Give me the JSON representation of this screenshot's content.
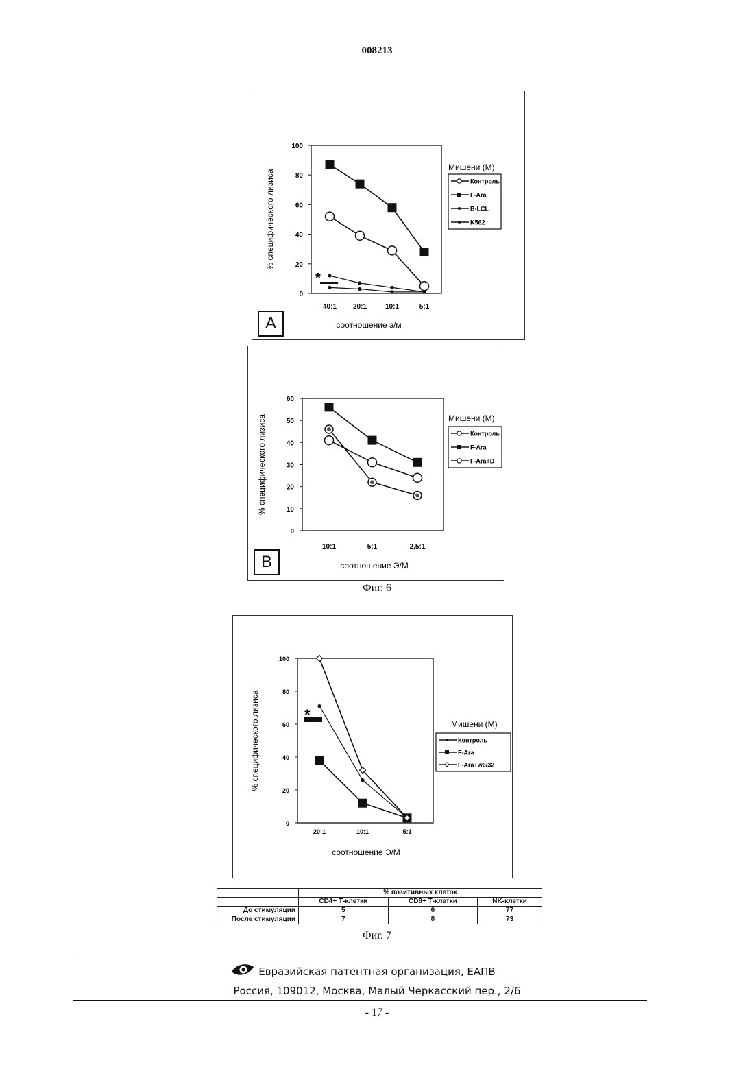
{
  "header": {
    "doc_number": "008213"
  },
  "figure6": {
    "caption": "Фиг. 6",
    "panel_a": {
      "letter": "A",
      "ylabel": "% специфического лизиса",
      "xlabel": "соотношение э/м",
      "legend_title": "Мишени (М)",
      "yticks": [
        "0",
        "20",
        "40",
        "60",
        "80",
        "100"
      ],
      "xticks": [
        "40:1",
        "20:1",
        "10:1",
        "5:1"
      ],
      "series_labels": [
        "Контроль",
        "F-Ara",
        "B-LCL",
        "K562"
      ],
      "significance_mark": "*"
    },
    "panel_b": {
      "letter": "B",
      "ylabel": "% специфического лизиса",
      "xlabel": "соотношение Э/М",
      "legend_title": "Мишени (М)",
      "yticks": [
        "0",
        "10",
        "20",
        "30",
        "40",
        "50",
        "60"
      ],
      "xticks": [
        "10:1",
        "5:1",
        "2,5:1"
      ],
      "series_labels": [
        "Контроль",
        "F-Ara",
        "F-Ara+D"
      ]
    }
  },
  "figure7": {
    "caption": "Фиг. 7",
    "ylabel": "% специфического лизиса",
    "xlabel": "соотношение Э/М",
    "legend_title": "Мишени (М)",
    "yticks": [
      "0",
      "20",
      "40",
      "60",
      "80",
      "100"
    ],
    "xticks": [
      "20:1",
      "10:1",
      "5:1"
    ],
    "series_labels": [
      "Контроль",
      "F-Ara",
      "F-Ara+w6/32"
    ],
    "significance_mark": "*",
    "table": {
      "group_header": "% позитивных клеток",
      "columns": [
        "CD4+ Т-клетки",
        "CD8+ Т-клетки",
        "NK-клетки"
      ],
      "rows": [
        {
          "label": "До стимуляции",
          "values": [
            "5",
            "6",
            "77"
          ]
        },
        {
          "label": "После стимуляции",
          "values": [
            "7",
            "8",
            "73"
          ]
        }
      ]
    }
  },
  "chart_data": [
    {
      "type": "line",
      "categories": [
        "40:1",
        "20:1",
        "10:1",
        "5:1"
      ],
      "ylabel": "% специфического лизиса",
      "xlabel": "соотношение э/м",
      "ylim": [
        0,
        100
      ],
      "legend_title": "Мишени (М)",
      "legend_position": "right",
      "series": [
        {
          "name": "Контроль",
          "values": [
            52,
            39,
            29,
            5
          ],
          "marker": "open-circle"
        },
        {
          "name": "F-Ara",
          "values": [
            87,
            74,
            58,
            28
          ],
          "marker": "square"
        },
        {
          "name": "B-LCL",
          "values": [
            12,
            7,
            4,
            1
          ],
          "marker": "dot"
        },
        {
          "name": "K562",
          "values": [
            4,
            3,
            1,
            1
          ],
          "marker": "dot"
        }
      ]
    },
    {
      "type": "line",
      "categories": [
        "10:1",
        "5:1",
        "2,5:1"
      ],
      "ylabel": "% специфического лизиса",
      "xlabel": "соотношение Э/М",
      "ylim": [
        0,
        60
      ],
      "legend_title": "Мишени (М)",
      "legend_position": "right",
      "series": [
        {
          "name": "Контроль",
          "values": [
            46,
            22,
            16
          ],
          "marker": "hatched-circle"
        },
        {
          "name": "F-Ara",
          "values": [
            56,
            41,
            31
          ],
          "marker": "square"
        },
        {
          "name": "F-Ara+D",
          "values": [
            41,
            31,
            24
          ],
          "marker": "open-circle"
        }
      ]
    },
    {
      "type": "line",
      "categories": [
        "20:1",
        "10:1",
        "5:1"
      ],
      "ylabel": "% специфического лизиса",
      "xlabel": "соотношение Э/М",
      "ylim": [
        0,
        100
      ],
      "legend_title": "Мишени (М)",
      "legend_position": "right",
      "series": [
        {
          "name": "Контроль",
          "values": [
            71,
            26,
            3
          ],
          "marker": "dot"
        },
        {
          "name": "F-Ara",
          "values": [
            38,
            12,
            3
          ],
          "marker": "square"
        },
        {
          "name": "F-Ara+w6/32",
          "values": [
            100,
            32,
            3
          ],
          "marker": "diamond"
        }
      ]
    }
  ],
  "footer": {
    "org": "Евразийская патентная организация, ЕАПВ",
    "address": "Россия, 109012, Москва, Малый Черкасский пер., 2/6",
    "logo_icon": "eye-logo-icon"
  },
  "page": {
    "number": "- 17 -"
  }
}
